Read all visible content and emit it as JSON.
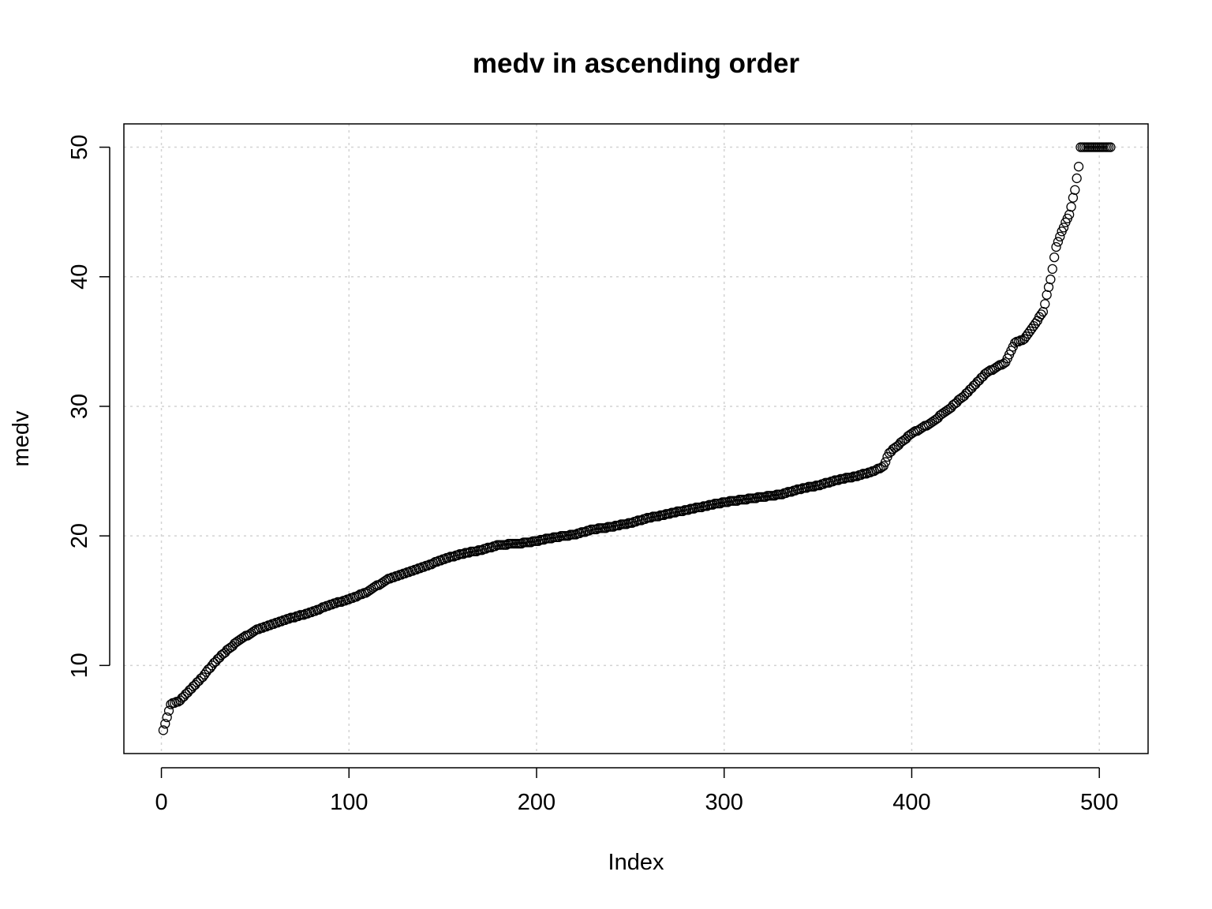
{
  "chart_data": {
    "type": "scatter",
    "title": "medv in ascending order",
    "xlabel": "Index",
    "ylabel": "medv",
    "xlim": [
      -20,
      526
    ],
    "ylim": [
      3.2,
      51.8
    ],
    "x_ticks": [
      0,
      100,
      200,
      300,
      400,
      500
    ],
    "y_ticks": [
      10,
      20,
      30,
      40,
      50
    ],
    "grid": true,
    "point_style": "open-circle",
    "n_points": 506,
    "series": [
      {
        "x": [
          1,
          5,
          10,
          20,
          30,
          40,
          50,
          60,
          70,
          80,
          90,
          100,
          110,
          120,
          130,
          140,
          150,
          160,
          170,
          180,
          190,
          200,
          210,
          220,
          230,
          240,
          250,
          260,
          270,
          280,
          290,
          300,
          310,
          320,
          330,
          340,
          350,
          360,
          370,
          380,
          385,
          388,
          392,
          400,
          410,
          420,
          430,
          440,
          450,
          455,
          460,
          465,
          470,
          474,
          477,
          480,
          484,
          487,
          489,
          490,
          506
        ],
        "y": [
          5.0,
          7.0,
          7.3,
          8.8,
          10.5,
          11.8,
          12.7,
          13.2,
          13.7,
          14.1,
          14.7,
          15.1,
          15.7,
          16.6,
          17.1,
          17.6,
          18.2,
          18.6,
          18.9,
          19.3,
          19.4,
          19.6,
          19.9,
          20.1,
          20.5,
          20.7,
          21.0,
          21.4,
          21.7,
          22.0,
          22.3,
          22.6,
          22.8,
          23.0,
          23.2,
          23.6,
          23.9,
          24.3,
          24.6,
          25.0,
          25.4,
          26.4,
          26.9,
          27.9,
          28.7,
          29.8,
          31.1,
          32.6,
          33.4,
          34.9,
          35.2,
          36.2,
          37.3,
          39.8,
          42.3,
          43.5,
          44.8,
          46.7,
          48.5,
          50.0,
          50.0
        ]
      }
    ]
  }
}
